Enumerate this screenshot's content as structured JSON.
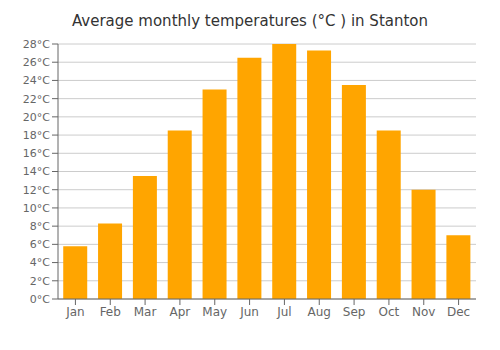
{
  "chart_data": {
    "type": "bar",
    "title": "Average monthly temperatures (°C ) in Stanton",
    "categories": [
      "Jan",
      "Feb",
      "Mar",
      "Apr",
      "May",
      "Jun",
      "Jul",
      "Aug",
      "Sep",
      "Oct",
      "Nov",
      "Dec"
    ],
    "values": [
      5.8,
      8.3,
      13.5,
      18.5,
      23.0,
      26.5,
      28.0,
      27.3,
      23.5,
      18.5,
      12.0,
      7.0
    ],
    "color": "#FFA500",
    "ylim": [
      0,
      28
    ],
    "yticks": [
      {
        "value": 0,
        "label": "0°C"
      },
      {
        "value": 2,
        "label": "2°C"
      },
      {
        "value": 4,
        "label": "4°C"
      },
      {
        "value": 6,
        "label": "6°C"
      },
      {
        "value": 8,
        "label": "8°C"
      },
      {
        "value": 10,
        "label": "10°C"
      },
      {
        "value": 12,
        "label": "12°C"
      },
      {
        "value": 14,
        "label": "14°C"
      },
      {
        "value": 16,
        "label": "16°C"
      },
      {
        "value": 18,
        "label": "18°C"
      },
      {
        "value": 20,
        "label": "20°C"
      },
      {
        "value": 22,
        "label": "22°C"
      },
      {
        "value": 24,
        "label": "24°C"
      },
      {
        "value": 26,
        "label": "26°C"
      },
      {
        "value": 28,
        "label": "28°C"
      }
    ],
    "grid": true
  }
}
